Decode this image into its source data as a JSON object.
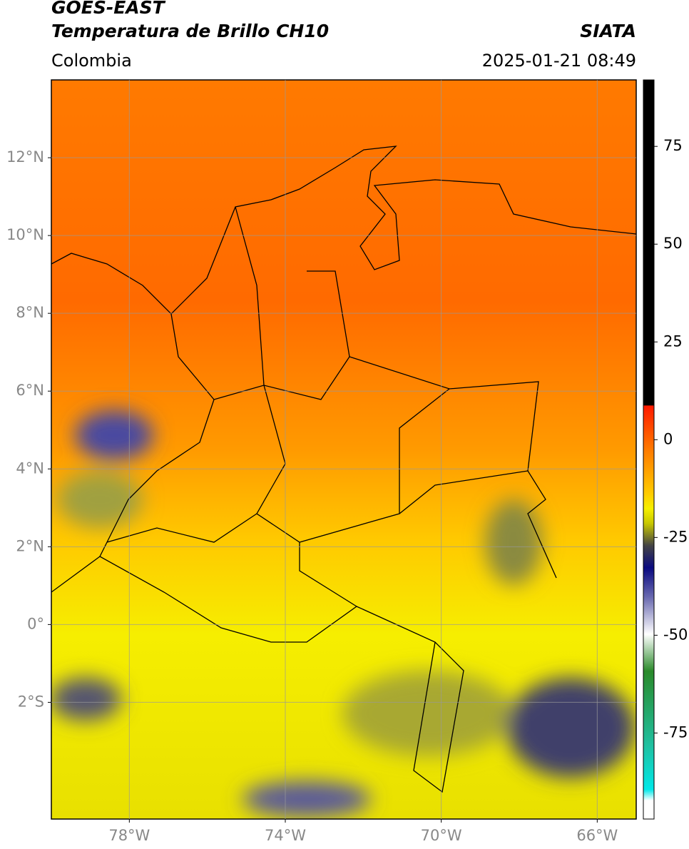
{
  "header": {
    "satellite": "GOES-EAST",
    "product": "Temperatura de Brillo CH10",
    "agency": "SIATA",
    "region": "Colombia",
    "datetime": "2025-01-21 08:49"
  },
  "map": {
    "xlim": [
      -80,
      -65
    ],
    "ylim": [
      -5,
      14
    ],
    "lon_ticks": [
      {
        "value": -78,
        "label": "78°W"
      },
      {
        "value": -74,
        "label": "74°W"
      },
      {
        "value": -70,
        "label": "70°W"
      },
      {
        "value": -66,
        "label": "66°W"
      }
    ],
    "lat_ticks": [
      {
        "value": 12,
        "label": "12°N"
      },
      {
        "value": 10,
        "label": "10°N"
      },
      {
        "value": 8,
        "label": "8°N"
      },
      {
        "value": 6,
        "label": "6°N"
      },
      {
        "value": 4,
        "label": "4°N"
      },
      {
        "value": 2,
        "label": "2°N"
      },
      {
        "value": 0,
        "label": "0°"
      },
      {
        "value": -2,
        "label": "2°S"
      }
    ],
    "grid": true
  },
  "colorbar": {
    "lim": [
      -97,
      92
    ],
    "ticks": [
      75,
      50,
      25,
      0,
      -25,
      -50,
      -75
    ]
  }
}
